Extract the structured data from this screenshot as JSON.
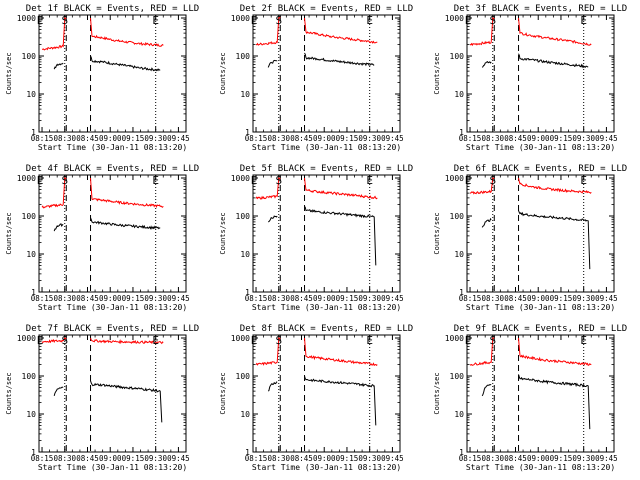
{
  "figure": {
    "background": "#ffffff",
    "axis_color": "#000000"
  },
  "chart_data": [
    {
      "type": "line",
      "title": "Det 1f BLACK = Events, RED = LLD",
      "xlabel": "Start Time (30-Jan-11 08:13:20)",
      "ylabel": "Counts/sec",
      "y_scale": "log",
      "ylim": [
        1,
        1200
      ],
      "y_ticks": [
        "1",
        "10",
        "100",
        "1000"
      ],
      "x_ticks": [
        "08:15",
        "08:30",
        "08:45",
        "09:00",
        "09:15",
        "09:30",
        "09:45"
      ],
      "grid": false,
      "markers": {
        "S": "08:30",
        "E_left": "08:15",
        "E_right": "09:30"
      },
      "gap": [
        "08:31",
        "08:47"
      ],
      "dotted_vlines": [
        "08:30",
        "09:30"
      ],
      "dashed_vlines": [
        "08:31",
        "08:47"
      ],
      "series": [
        {
          "color": "#ff0000",
          "x": [
            "08:15",
            "08:29",
            "08:30",
            "08:31"
          ],
          "values": [
            150,
            180,
            1000,
            1000
          ]
        },
        {
          "color": "#ff0000",
          "x": [
            "08:47",
            "08:48",
            "08:55",
            "09:05",
            "09:20",
            "09:35"
          ],
          "values": [
            1000,
            330,
            300,
            250,
            210,
            190
          ]
        },
        {
          "color": "#000000",
          "x": [
            "08:23",
            "08:25",
            "08:29"
          ],
          "values": [
            45,
            60,
            65
          ]
        },
        {
          "color": "#000000",
          "x": [
            "08:47",
            "08:48",
            "08:55",
            "09:05",
            "09:20",
            "09:33"
          ],
          "values": [
            100,
            75,
            70,
            60,
            48,
            42
          ]
        }
      ]
    },
    {
      "type": "line",
      "title": "Det 2f BLACK = Events, RED = LLD",
      "xlabel": "Start Time (30-Jan-11 08:13:20)",
      "ylabel": "Counts/sec",
      "y_scale": "log",
      "ylim": [
        1,
        1200
      ],
      "y_ticks": [
        "1",
        "10",
        "100",
        "1000"
      ],
      "x_ticks": [
        "08:15",
        "08:30",
        "08:45",
        "09:00",
        "09:15",
        "09:30",
        "09:45"
      ],
      "grid": false,
      "markers": {
        "S": "08:30",
        "E_left": "08:15",
        "E_right": "09:30"
      },
      "gap": [
        "08:31",
        "08:47"
      ],
      "dotted_vlines": [
        "08:30",
        "09:30"
      ],
      "dashed_vlines": [
        "08:31",
        "08:47"
      ],
      "series": [
        {
          "color": "#ff0000",
          "x": [
            "08:15",
            "08:29",
            "08:30",
            "08:31"
          ],
          "values": [
            200,
            230,
            1000,
            1000
          ]
        },
        {
          "color": "#ff0000",
          "x": [
            "08:47",
            "08:48",
            "08:55",
            "09:05",
            "09:20",
            "09:35"
          ],
          "values": [
            1000,
            430,
            380,
            320,
            270,
            230
          ]
        },
        {
          "color": "#000000",
          "x": [
            "08:23",
            "08:25",
            "08:29"
          ],
          "values": [
            50,
            68,
            75
          ]
        },
        {
          "color": "#000000",
          "x": [
            "08:47",
            "08:48",
            "08:55",
            "09:05",
            "09:20",
            "09:33"
          ],
          "values": [
            120,
            90,
            85,
            75,
            65,
            58
          ]
        }
      ]
    },
    {
      "type": "line",
      "title": "Det 3f BLACK = Events, RED = LLD",
      "xlabel": "Start Time (30-Jan-11 08:13:20)",
      "ylabel": "Counts/sec",
      "y_scale": "log",
      "ylim": [
        1,
        1200
      ],
      "y_ticks": [
        "1",
        "10",
        "100",
        "1000"
      ],
      "x_ticks": [
        "08:15",
        "08:30",
        "08:45",
        "09:00",
        "09:15",
        "09:30",
        "09:45"
      ],
      "grid": false,
      "markers": {
        "S": "08:30",
        "E_left": "08:15",
        "E_right": "09:30"
      },
      "gap": [
        "08:31",
        "08:47"
      ],
      "dotted_vlines": [
        "08:30",
        "09:30"
      ],
      "dashed_vlines": [
        "08:31",
        "08:47"
      ],
      "series": [
        {
          "color": "#ff0000",
          "x": [
            "08:15",
            "08:29",
            "08:30",
            "08:31"
          ],
          "values": [
            200,
            230,
            1000,
            1000
          ]
        },
        {
          "color": "#ff0000",
          "x": [
            "08:47",
            "08:48",
            "08:55",
            "09:05",
            "09:20",
            "09:35"
          ],
          "values": [
            1000,
            400,
            350,
            300,
            250,
            200
          ]
        },
        {
          "color": "#000000",
          "x": [
            "08:23",
            "08:25",
            "08:29"
          ],
          "values": [
            50,
            65,
            70
          ]
        },
        {
          "color": "#000000",
          "x": [
            "08:47",
            "08:48",
            "08:55",
            "09:05",
            "09:20",
            "09:33"
          ],
          "values": [
            115,
            85,
            80,
            70,
            60,
            52
          ]
        }
      ]
    },
    {
      "type": "line",
      "title": "Det 4f BLACK = Events, RED = LLD",
      "xlabel": "Start Time (30-Jan-11 08:13:20)",
      "ylabel": "Counts/sec",
      "y_scale": "log",
      "ylim": [
        1,
        1200
      ],
      "y_ticks": [
        "1",
        "10",
        "100",
        "1000"
      ],
      "x_ticks": [
        "08:15",
        "08:30",
        "08:45",
        "09:00",
        "09:15",
        "09:30",
        "09:45"
      ],
      "grid": false,
      "markers": {
        "S": "08:30",
        "E_left": "08:15",
        "E_right": "09:30"
      },
      "gap": [
        "08:31",
        "08:47"
      ],
      "dotted_vlines": [
        "08:30",
        "09:30"
      ],
      "dashed_vlines": [
        "08:31",
        "08:47"
      ],
      "series": [
        {
          "color": "#ff0000",
          "x": [
            "08:15",
            "08:29",
            "08:30",
            "08:31"
          ],
          "values": [
            170,
            200,
            1000,
            1000
          ]
        },
        {
          "color": "#ff0000",
          "x": [
            "08:47",
            "08:48",
            "08:55",
            "09:05",
            "09:20",
            "09:35"
          ],
          "values": [
            1000,
            280,
            260,
            230,
            200,
            180
          ]
        },
        {
          "color": "#000000",
          "x": [
            "08:23",
            "08:25",
            "08:29"
          ],
          "values": [
            40,
            55,
            60
          ]
        },
        {
          "color": "#000000",
          "x": [
            "08:47",
            "08:48",
            "08:55",
            "09:05",
            "09:20",
            "09:33"
          ],
          "values": [
            90,
            70,
            65,
            58,
            52,
            48
          ]
        }
      ]
    },
    {
      "type": "line",
      "title": "Det 5f BLACK = Events, RED = LLD",
      "xlabel": "Start Time (30-Jan-11 08:13:20)",
      "ylabel": "Counts/sec",
      "y_scale": "log",
      "ylim": [
        1,
        1200
      ],
      "y_ticks": [
        "1",
        "10",
        "100",
        "1000"
      ],
      "x_ticks": [
        "08:15",
        "08:30",
        "08:45",
        "09:00",
        "09:15",
        "09:30",
        "09:45"
      ],
      "grid": false,
      "markers": {
        "S": "08:30",
        "E_left": "08:15",
        "E_right": "09:30"
      },
      "gap": [
        "08:31",
        "08:47"
      ],
      "dotted_vlines": [
        "08:30",
        "09:30"
      ],
      "dashed_vlines": [
        "08:31",
        "08:47"
      ],
      "series": [
        {
          "color": "#ff0000",
          "x": [
            "08:15",
            "08:29",
            "08:30",
            "08:31"
          ],
          "values": [
            290,
            330,
            1000,
            1000
          ]
        },
        {
          "color": "#ff0000",
          "x": [
            "08:47",
            "08:48",
            "08:55",
            "09:05",
            "09:20",
            "09:35"
          ],
          "values": [
            1000,
            480,
            440,
            400,
            350,
            300
          ]
        },
        {
          "color": "#000000",
          "x": [
            "08:23",
            "08:25",
            "08:29"
          ],
          "values": [
            70,
            90,
            100
          ]
        },
        {
          "color": "#000000",
          "x": [
            "08:47",
            "08:48",
            "08:55",
            "09:05",
            "09:20",
            "09:33",
            "09:34"
          ],
          "values": [
            180,
            140,
            130,
            120,
            105,
            95,
            5
          ]
        }
      ]
    },
    {
      "type": "line",
      "title": "Det 6f BLACK = Events, RED = LLD",
      "xlabel": "Start Time (30-Jan-11 08:13:20)",
      "ylabel": "Counts/sec",
      "y_scale": "log",
      "ylim": [
        1,
        1200
      ],
      "y_ticks": [
        "1",
        "10",
        "100",
        "1000"
      ],
      "x_ticks": [
        "08:15",
        "08:30",
        "08:45",
        "09:00",
        "09:15",
        "09:30",
        "09:45"
      ],
      "grid": false,
      "markers": {
        "S": "08:30",
        "E_left": "08:15",
        "E_right": "09:30"
      },
      "gap": [
        "08:31",
        "08:47"
      ],
      "dotted_vlines": [
        "08:30",
        "09:30"
      ],
      "dashed_vlines": [
        "08:31",
        "08:47"
      ],
      "series": [
        {
          "color": "#ff0000",
          "x": [
            "08:15",
            "08:29",
            "08:30",
            "08:31"
          ],
          "values": [
            400,
            440,
            1000,
            1000
          ]
        },
        {
          "color": "#ff0000",
          "x": [
            "08:47",
            "08:48",
            "08:55",
            "09:05",
            "09:20",
            "09:35"
          ],
          "values": [
            1000,
            700,
            600,
            520,
            460,
            420
          ]
        },
        {
          "color": "#000000",
          "x": [
            "08:23",
            "08:25",
            "08:29"
          ],
          "values": [
            50,
            70,
            80
          ]
        },
        {
          "color": "#000000",
          "x": [
            "08:47",
            "08:48",
            "08:55",
            "09:05",
            "09:20",
            "09:33",
            "09:34"
          ],
          "values": [
            140,
            115,
            105,
            95,
            85,
            75,
            4
          ]
        }
      ]
    },
    {
      "type": "line",
      "title": "Det 7f BLACK = Events, RED = LLD",
      "xlabel": "Start Time (30-Jan-11 08:13:20)",
      "ylabel": "Counts/sec",
      "y_scale": "log",
      "ylim": [
        1,
        1200
      ],
      "y_ticks": [
        "1",
        "10",
        "100",
        "1000"
      ],
      "x_ticks": [
        "08:15",
        "08:30",
        "08:45",
        "09:00",
        "09:15",
        "09:30",
        "09:45"
      ],
      "grid": false,
      "markers": {
        "S": "08:30",
        "E_left": "08:15",
        "E_right": "09:30"
      },
      "gap": [
        "08:31",
        "08:47"
      ],
      "dotted_vlines": [
        "08:30",
        "09:30"
      ],
      "dashed_vlines": [
        "08:31",
        "08:47"
      ],
      "series": [
        {
          "color": "#ff0000",
          "x": [
            "08:15",
            "08:29",
            "08:30",
            "08:31"
          ],
          "values": [
            800,
            850,
            1000,
            1000
          ]
        },
        {
          "color": "#ff0000",
          "x": [
            "08:47",
            "08:48",
            "08:55",
            "09:05",
            "09:20",
            "09:35"
          ],
          "values": [
            1000,
            850,
            820,
            800,
            780,
            760
          ]
        },
        {
          "color": "#000000",
          "x": [
            "08:23",
            "08:25",
            "08:29"
          ],
          "values": [
            30,
            45,
            50
          ]
        },
        {
          "color": "#000000",
          "x": [
            "08:47",
            "08:48",
            "08:55",
            "09:05",
            "09:20",
            "09:33",
            "09:34"
          ],
          "values": [
            75,
            60,
            58,
            52,
            46,
            40,
            6
          ]
        }
      ]
    },
    {
      "type": "line",
      "title": "Det 8f BLACK = Events, RED = LLD",
      "xlabel": "Start Time (30-Jan-11 08:13:20)",
      "ylabel": "Counts/sec",
      "y_scale": "log",
      "ylim": [
        1,
        1200
      ],
      "y_ticks": [
        "1",
        "10",
        "100",
        "1000"
      ],
      "x_ticks": [
        "08:15",
        "08:30",
        "08:45",
        "09:00",
        "09:15",
        "09:30",
        "09:45"
      ],
      "grid": false,
      "markers": {
        "S": "08:30",
        "E_left": "08:15",
        "E_right": "09:30"
      },
      "gap": [
        "08:31",
        "08:47"
      ],
      "dotted_vlines": [
        "08:30",
        "09:30"
      ],
      "dashed_vlines": [
        "08:31",
        "08:47"
      ],
      "series": [
        {
          "color": "#ff0000",
          "x": [
            "08:15",
            "08:29",
            "08:30",
            "08:31"
          ],
          "values": [
            200,
            230,
            1000,
            1000
          ]
        },
        {
          "color": "#ff0000",
          "x": [
            "08:47",
            "08:48",
            "08:55",
            "09:05",
            "09:20",
            "09:35"
          ],
          "values": [
            1000,
            330,
            300,
            270,
            230,
            200
          ]
        },
        {
          "color": "#000000",
          "x": [
            "08:23",
            "08:25",
            "08:29"
          ],
          "values": [
            40,
            60,
            70
          ]
        },
        {
          "color": "#000000",
          "x": [
            "08:47",
            "08:48",
            "08:55",
            "09:05",
            "09:20",
            "09:33",
            "09:34"
          ],
          "values": [
            100,
            80,
            75,
            70,
            62,
            55,
            5
          ]
        }
      ]
    },
    {
      "type": "line",
      "title": "Det 9f BLACK = Events, RED = LLD",
      "xlabel": "Start Time (30-Jan-11 08:13:20)",
      "ylabel": "Counts/sec",
      "y_scale": "log",
      "ylim": [
        1,
        1200
      ],
      "y_ticks": [
        "1",
        "10",
        "100",
        "1000"
      ],
      "x_ticks": [
        "08:15",
        "08:30",
        "08:45",
        "09:00",
        "09:15",
        "09:30",
        "09:45"
      ],
      "grid": false,
      "markers": {
        "S": "08:30",
        "E_left": "08:15",
        "E_right": "09:30"
      },
      "gap": [
        "08:31",
        "08:47"
      ],
      "dotted_vlines": [
        "08:30",
        "09:30"
      ],
      "dashed_vlines": [
        "08:31",
        "08:47"
      ],
      "series": [
        {
          "color": "#ff0000",
          "x": [
            "08:15",
            "08:29",
            "08:30",
            "08:31"
          ],
          "values": [
            200,
            230,
            1000,
            1000
          ]
        },
        {
          "color": "#ff0000",
          "x": [
            "08:47",
            "08:48",
            "08:55",
            "09:05",
            "09:20",
            "09:35"
          ],
          "values": [
            1000,
            340,
            300,
            260,
            230,
            200
          ]
        },
        {
          "color": "#000000",
          "x": [
            "08:23",
            "08:25",
            "08:29"
          ],
          "values": [
            30,
            50,
            60
          ]
        },
        {
          "color": "#000000",
          "x": [
            "08:47",
            "08:48",
            "08:55",
            "09:05",
            "09:20",
            "09:33",
            "09:34"
          ],
          "values": [
            110,
            85,
            80,
            70,
            62,
            55,
            4
          ]
        }
      ]
    }
  ]
}
